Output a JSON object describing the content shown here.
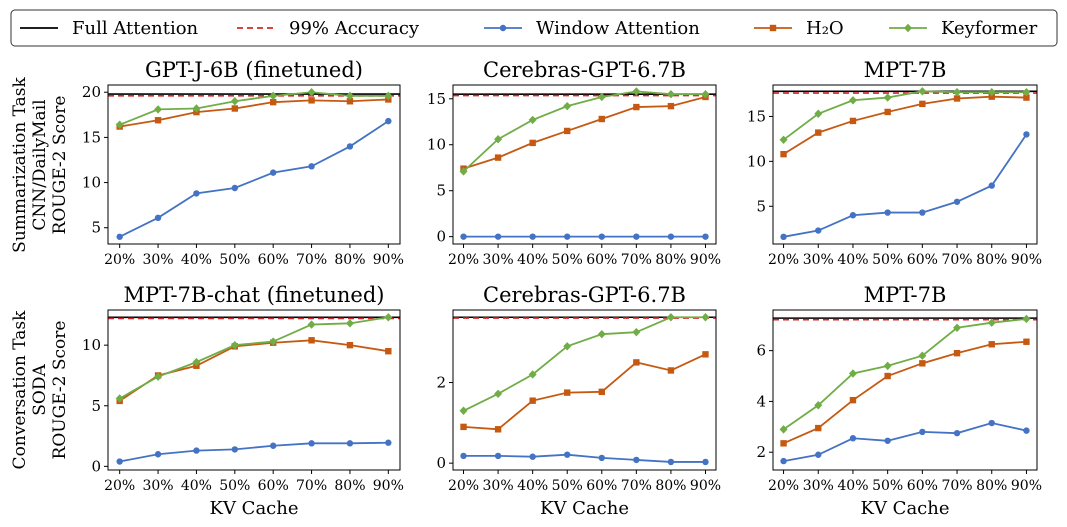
{
  "legend": {
    "entries": [
      {
        "label": "Full Attention",
        "color": "#000000",
        "style": "solid",
        "marker": "none"
      },
      {
        "label": "99% Accuracy",
        "color": "#d62728",
        "style": "dashed",
        "marker": "none"
      },
      {
        "label": "Window Attention",
        "color": "#4472c4",
        "style": "solid",
        "marker": "circle"
      },
      {
        "label": "H₂O",
        "color": "#c65911",
        "style": "solid",
        "marker": "square"
      },
      {
        "label": "Keyformer",
        "color": "#70ad47",
        "style": "solid",
        "marker": "diamond"
      }
    ],
    "placement": "top"
  },
  "row_labels": [
    [
      "Summarization Task",
      "CNN/DailyMail",
      "ROUGE-2 Score"
    ],
    [
      "Conversation Task",
      "SODA",
      "ROUGE-2 Score"
    ]
  ],
  "chart_data": [
    {
      "type": "line",
      "title": "GPT-J-6B (finetuned)",
      "xlabel": "",
      "ylabel": "",
      "categories": [
        "20%",
        "30%",
        "40%",
        "50%",
        "60%",
        "70%",
        "80%",
        "90%"
      ],
      "ylim": [
        3.2,
        20.8
      ],
      "yticks": [
        5,
        10,
        15,
        20
      ],
      "full_attention": 19.8,
      "accuracy_99": 19.6,
      "series": [
        {
          "name": "Window Attention",
          "values": [
            4.0,
            6.1,
            8.8,
            9.4,
            11.1,
            11.8,
            14.0,
            16.8
          ]
        },
        {
          "name": "H₂O",
          "values": [
            16.2,
            16.9,
            17.8,
            18.2,
            18.9,
            19.1,
            19.0,
            19.2
          ]
        },
        {
          "name": "Keyformer",
          "values": [
            16.4,
            18.1,
            18.2,
            19.0,
            19.6,
            20.0,
            19.6,
            19.6
          ]
        }
      ]
    },
    {
      "type": "line",
      "title": "Cerebras-GPT-6.7B",
      "xlabel": "",
      "ylabel": "",
      "categories": [
        "20%",
        "30%",
        "40%",
        "50%",
        "60%",
        "70%",
        "80%",
        "90%"
      ],
      "ylim": [
        -0.8,
        16.5
      ],
      "yticks": [
        0,
        5,
        10,
        15
      ],
      "full_attention": 15.5,
      "accuracy_99": 15.35,
      "series": [
        {
          "name": "Window Attention",
          "values": [
            0.0,
            0.0,
            0.0,
            0.0,
            0.0,
            0.0,
            0.0,
            0.0
          ]
        },
        {
          "name": "H₂O",
          "values": [
            7.4,
            8.6,
            10.2,
            11.5,
            12.8,
            14.1,
            14.2,
            15.2
          ]
        },
        {
          "name": "Keyformer",
          "values": [
            7.1,
            10.6,
            12.7,
            14.2,
            15.2,
            15.8,
            15.5,
            15.5
          ]
        }
      ]
    },
    {
      "type": "line",
      "title": "MPT-7B",
      "xlabel": "",
      "ylabel": "",
      "categories": [
        "20%",
        "30%",
        "40%",
        "50%",
        "60%",
        "70%",
        "80%",
        "90%"
      ],
      "ylim": [
        0.8,
        18.5
      ],
      "yticks": [
        5,
        10,
        15
      ],
      "full_attention": 17.8,
      "accuracy_99": 17.6,
      "series": [
        {
          "name": "Window Attention",
          "values": [
            1.6,
            2.3,
            4.0,
            4.3,
            4.3,
            5.5,
            7.3,
            13.0
          ]
        },
        {
          "name": "H₂O",
          "values": [
            10.8,
            13.2,
            14.5,
            15.5,
            16.4,
            17.0,
            17.2,
            17.1
          ]
        },
        {
          "name": "Keyformer",
          "values": [
            12.4,
            15.3,
            16.8,
            17.1,
            17.8,
            17.7,
            17.7,
            17.7
          ]
        }
      ]
    },
    {
      "type": "line",
      "title": "MPT-7B-chat (finetuned)",
      "xlabel": "KV Cache",
      "ylabel": "",
      "categories": [
        "20%",
        "30%",
        "40%",
        "50%",
        "60%",
        "70%",
        "80%",
        "90%"
      ],
      "ylim": [
        -0.3,
        12.9
      ],
      "yticks": [
        0,
        5,
        10
      ],
      "full_attention": 12.3,
      "accuracy_99": 12.2,
      "series": [
        {
          "name": "Window Attention",
          "values": [
            0.4,
            1.0,
            1.3,
            1.4,
            1.7,
            1.9,
            1.9,
            1.95
          ]
        },
        {
          "name": "H₂O",
          "values": [
            5.4,
            7.5,
            8.3,
            9.9,
            10.2,
            10.4,
            10.0,
            9.5
          ]
        },
        {
          "name": "Keyformer",
          "values": [
            5.6,
            7.4,
            8.6,
            10.0,
            10.3,
            11.7,
            11.8,
            12.3
          ]
        }
      ]
    },
    {
      "type": "line",
      "title": "Cerebras-GPT-6.7B",
      "xlabel": "KV Cache",
      "ylabel": "",
      "categories": [
        "20%",
        "30%",
        "40%",
        "50%",
        "60%",
        "70%",
        "80%",
        "90%"
      ],
      "ylim": [
        -0.17,
        3.8
      ],
      "yticks": [
        0,
        2
      ],
      "full_attention": 3.62,
      "accuracy_99": 3.6,
      "series": [
        {
          "name": "Window Attention",
          "values": [
            0.18,
            0.18,
            0.16,
            0.21,
            0.13,
            0.08,
            0.03,
            0.03
          ]
        },
        {
          "name": "H₂O",
          "values": [
            0.9,
            0.84,
            1.55,
            1.75,
            1.77,
            2.5,
            2.3,
            2.7
          ]
        },
        {
          "name": "Keyformer",
          "values": [
            1.3,
            1.72,
            2.2,
            2.9,
            3.2,
            3.25,
            3.62,
            3.62
          ]
        }
      ]
    },
    {
      "type": "line",
      "title": "MPT-7B",
      "xlabel": "KV Cache",
      "ylabel": "",
      "categories": [
        "20%",
        "30%",
        "40%",
        "50%",
        "60%",
        "70%",
        "80%",
        "90%"
      ],
      "ylim": [
        1.3,
        7.6
      ],
      "yticks": [
        2,
        4,
        6
      ],
      "full_attention": 7.28,
      "accuracy_99": 7.22,
      "series": [
        {
          "name": "Window Attention",
          "values": [
            1.65,
            1.9,
            2.55,
            2.45,
            2.8,
            2.75,
            3.15,
            2.85
          ]
        },
        {
          "name": "H₂O",
          "values": [
            2.35,
            2.95,
            4.05,
            5.0,
            5.5,
            5.9,
            6.25,
            6.35
          ]
        },
        {
          "name": "Keyformer",
          "values": [
            2.9,
            3.85,
            5.1,
            5.4,
            5.8,
            6.9,
            7.1,
            7.25
          ]
        }
      ]
    }
  ]
}
